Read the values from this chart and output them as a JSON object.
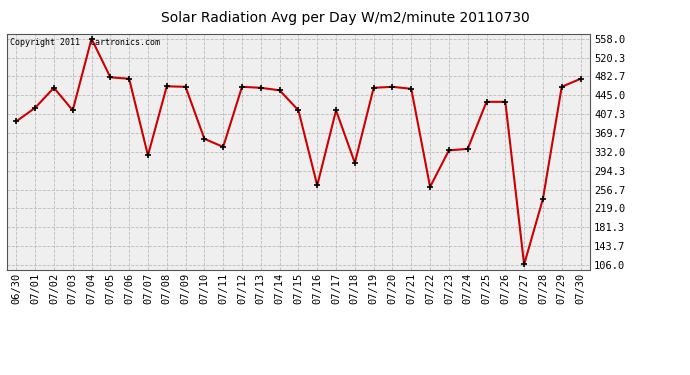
{
  "title": "Solar Radiation Avg per Day W/m2/minute 20110730",
  "copyright": "Copyright 2011  Cartronics.com",
  "dates": [
    "06/30",
    "07/01",
    "07/02",
    "07/03",
    "07/04",
    "07/05",
    "07/06",
    "07/07",
    "07/08",
    "07/09",
    "07/10",
    "07/11",
    "07/12",
    "07/13",
    "07/14",
    "07/15",
    "07/16",
    "07/17",
    "07/18",
    "07/19",
    "07/20",
    "07/21",
    "07/22",
    "07/23",
    "07/24",
    "07/25",
    "07/26",
    "07/27",
    "07/28",
    "07/29",
    "07/30"
  ],
  "values": [
    393,
    420,
    460,
    415,
    558,
    481,
    478,
    325,
    463,
    462,
    358,
    342,
    462,
    460,
    455,
    415,
    265,
    415,
    310,
    460,
    462,
    458,
    262,
    335,
    338,
    432,
    432,
    107,
    238,
    462,
    478
  ],
  "line_color": "#cc0000",
  "marker_color": "#000000",
  "bg_color": "#ffffff",
  "plot_bg_color": "#efefef",
  "grid_color": "#bbbbbb",
  "ymin": 106.0,
  "ymax": 558.0,
  "yticks": [
    106.0,
    143.7,
    181.3,
    219.0,
    256.7,
    294.3,
    332.0,
    369.7,
    407.3,
    445.0,
    482.7,
    520.3,
    558.0
  ],
  "title_fontsize": 10,
  "tick_fontsize": 7.5
}
